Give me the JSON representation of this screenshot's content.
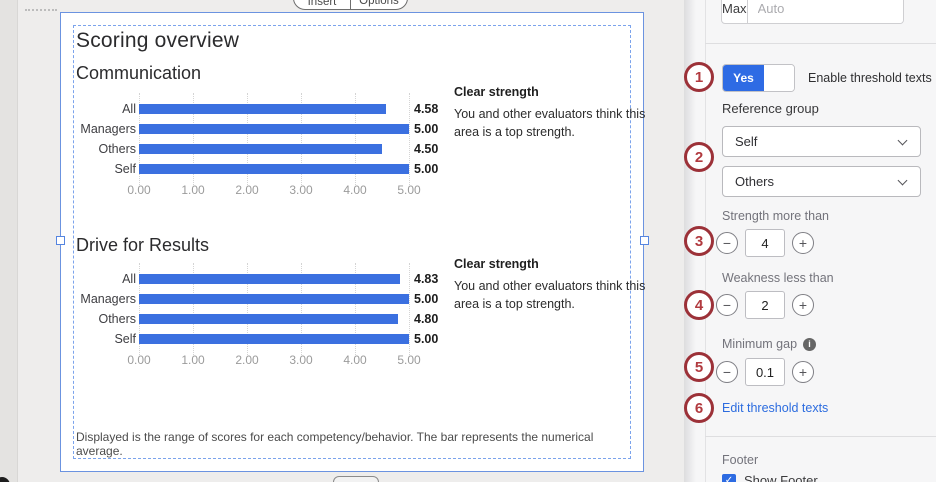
{
  "canvas": {
    "toolbar": {
      "insert_label": "Insert",
      "options_label": "Options"
    },
    "page_title": "Scoring overview",
    "sections": [
      {
        "threshold_title": "Clear strength",
        "threshold_text": "You and other evaluators think this area is a top strength."
      },
      {
        "threshold_title": "Clear strength",
        "threshold_text": "You and other evaluators think this area is a top strength."
      }
    ],
    "footer_note": "Displayed is the range of scores for each competency/behavior. The bar represents the numerical average."
  },
  "chart_data": [
    {
      "type": "bar",
      "orientation": "horizontal",
      "title": "Communication",
      "categories": [
        "All",
        "Managers",
        "Others",
        "Self"
      ],
      "values": [
        4.58,
        5.0,
        4.5,
        5.0
      ],
      "value_labels": [
        "4.58",
        "5.00",
        "4.50",
        "5.00"
      ],
      "xlim": [
        0,
        5
      ],
      "tick_labels": [
        "0.00",
        "1.00",
        "2.00",
        "3.00",
        "4.00",
        "5.00"
      ],
      "grid": true,
      "bar_color": "#3b70e0"
    },
    {
      "type": "bar",
      "orientation": "horizontal",
      "title": "Drive for Results",
      "categories": [
        "All",
        "Managers",
        "Others",
        "Self"
      ],
      "values": [
        4.83,
        5.0,
        4.8,
        5.0
      ],
      "value_labels": [
        "4.83",
        "5.00",
        "4.80",
        "5.00"
      ],
      "xlim": [
        0,
        5
      ],
      "tick_labels": [
        "0.00",
        "1.00",
        "2.00",
        "3.00",
        "4.00",
        "5.00"
      ],
      "grid": true,
      "bar_color": "#3b70e0"
    }
  ],
  "panel": {
    "max_label": "Max",
    "max_placeholder": "Auto",
    "toggle_on": "Yes",
    "toggle_caption": "Enable threshold texts",
    "reference_group_label": "Reference group",
    "reference_group_primary": "Self",
    "reference_group_secondary": "Others",
    "strength_label": "Strength more than",
    "strength_value": "4",
    "weakness_label": "Weakness less than",
    "weakness_value": "2",
    "min_gap_label": "Minimum gap",
    "min_gap_value": "0.1",
    "edit_link": "Edit threshold texts",
    "footer_section_label": "Footer",
    "show_footer_label": "Show Footer",
    "show_footer_checked": true
  },
  "icons": {
    "minus": "−",
    "plus": "+",
    "info": "i",
    "check": "✓"
  },
  "annotations": {
    "labels": [
      "1",
      "2",
      "3",
      "4",
      "5",
      "6"
    ],
    "circle_color": "#9c3138"
  },
  "colors": {
    "bar_blue": "#3b70e0",
    "accent_blue": "#2e6be4",
    "link_blue": "#2c6cdf",
    "annotation_red": "#9c3138"
  }
}
